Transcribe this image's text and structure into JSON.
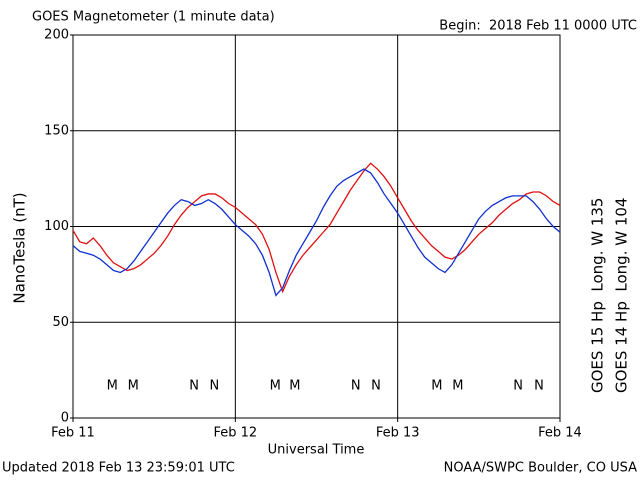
{
  "chart_data": {
    "type": "line",
    "title": "GOES Magnetometer (1 minute data)",
    "subtitle": "Begin:  2018 Feb 11 0000 UTC",
    "ylabel": "NanoTesla (nT)",
    "xlabel": "Universal Time",
    "footer_left": "Updated 2018 Feb 13 23:59:01 UTC",
    "footer_right": "NOAA/SWPC Boulder, CO USA",
    "xlim": [
      0,
      72
    ],
    "xticks": [
      {
        "value": 0,
        "label": "Feb 11"
      },
      {
        "value": 24,
        "label": "Feb 12"
      },
      {
        "value": 48,
        "label": "Feb 13"
      },
      {
        "value": 72,
        "label": "Feb 14"
      }
    ],
    "ylim": [
      0,
      200
    ],
    "yticks": [
      0,
      50,
      100,
      150,
      200
    ],
    "grid": true,
    "x": [
      0,
      1,
      2,
      3,
      4,
      5,
      6,
      7,
      8,
      9,
      10,
      11,
      12,
      13,
      14,
      15,
      16,
      17,
      18,
      19,
      20,
      21,
      22,
      23,
      24,
      25,
      26,
      27,
      28,
      29,
      30,
      31,
      32,
      33,
      34,
      35,
      36,
      37,
      38,
      39,
      40,
      41,
      42,
      43,
      44,
      45,
      46,
      47,
      48,
      49,
      50,
      51,
      52,
      53,
      54,
      55,
      56,
      57,
      58,
      59,
      60,
      61,
      62,
      63,
      64,
      65,
      66,
      67,
      68,
      69,
      70,
      71,
      72
    ],
    "series": [
      {
        "name": "GOES 15 Hp  Long. W 135",
        "color": "#e01010",
        "values": [
          98,
          92,
          91,
          94,
          90,
          85,
          81,
          79,
          77,
          78,
          80,
          83,
          86,
          90,
          95,
          101,
          106,
          110,
          113,
          116,
          117,
          117,
          115,
          112,
          110,
          107,
          104,
          101,
          96,
          88,
          76,
          66,
          74,
          80,
          85,
          89,
          93,
          97,
          101,
          107,
          113,
          119,
          124,
          129,
          133,
          130,
          126,
          121,
          115,
          109,
          103,
          98,
          94,
          90,
          87,
          84,
          83,
          85,
          88,
          92,
          96,
          99,
          102,
          106,
          109,
          112,
          114,
          117,
          118,
          118,
          116,
          113,
          111
        ]
      },
      {
        "name": "GOES 14 Hp  Long. W 104",
        "color": "#1030d0",
        "values": [
          90,
          87,
          86,
          85,
          83,
          80,
          77,
          76,
          78,
          82,
          87,
          92,
          97,
          102,
          107,
          111,
          114,
          113,
          111,
          112,
          114,
          112,
          109,
          105,
          101,
          98,
          95,
          91,
          85,
          76,
          64,
          68,
          77,
          85,
          91,
          97,
          103,
          110,
          116,
          121,
          124,
          126,
          128,
          130,
          128,
          123,
          117,
          112,
          107,
          101,
          95,
          89,
          84,
          81,
          78,
          76,
          80,
          86,
          92,
          98,
          104,
          108,
          111,
          113,
          115,
          116,
          116,
          116,
          113,
          109,
          104,
          100,
          97
        ]
      }
    ],
    "annotations": [
      {
        "text": "M",
        "x": 5.8,
        "color": "#1030d0"
      },
      {
        "text": "M",
        "x": 8.9,
        "color": "#e01010"
      },
      {
        "text": "N",
        "x": 17.9,
        "color": "#1030d0"
      },
      {
        "text": "N",
        "x": 20.9,
        "color": "#e01010"
      },
      {
        "text": "M",
        "x": 29.9,
        "color": "#1030d0"
      },
      {
        "text": "M",
        "x": 32.8,
        "color": "#e01010"
      },
      {
        "text": "N",
        "x": 41.8,
        "color": "#1030d0"
      },
      {
        "text": "N",
        "x": 44.8,
        "color": "#e01010"
      },
      {
        "text": "M",
        "x": 53.8,
        "color": "#1030d0"
      },
      {
        "text": "M",
        "x": 56.9,
        "color": "#e01010"
      },
      {
        "text": "N",
        "x": 65.8,
        "color": "#1030d0"
      },
      {
        "text": "N",
        "x": 68.9,
        "color": "#e01010"
      }
    ]
  }
}
